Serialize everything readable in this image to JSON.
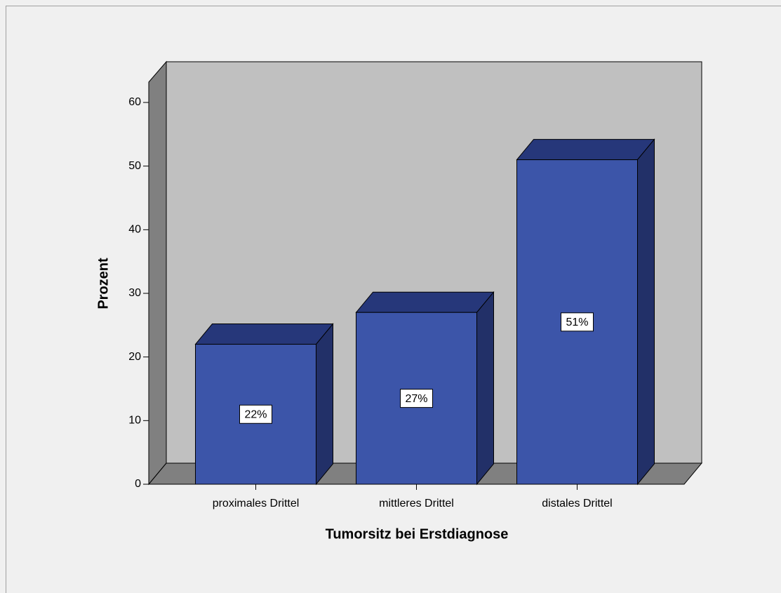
{
  "chart_data": {
    "type": "bar",
    "x_label": "Tumorsitz bei Erstdiagnose",
    "y_label": "Prozent",
    "categories": [
      "proximales Drittel",
      "mittleres Drittel",
      "distales Drittel"
    ],
    "values": [
      22,
      27,
      51
    ],
    "value_labels": [
      "22%",
      "27%",
      "51%"
    ],
    "color": "#3c55a9",
    "ylim": [
      0,
      63.2
    ],
    "yticks": [
      0,
      10,
      20,
      30,
      40,
      50,
      60
    ]
  }
}
